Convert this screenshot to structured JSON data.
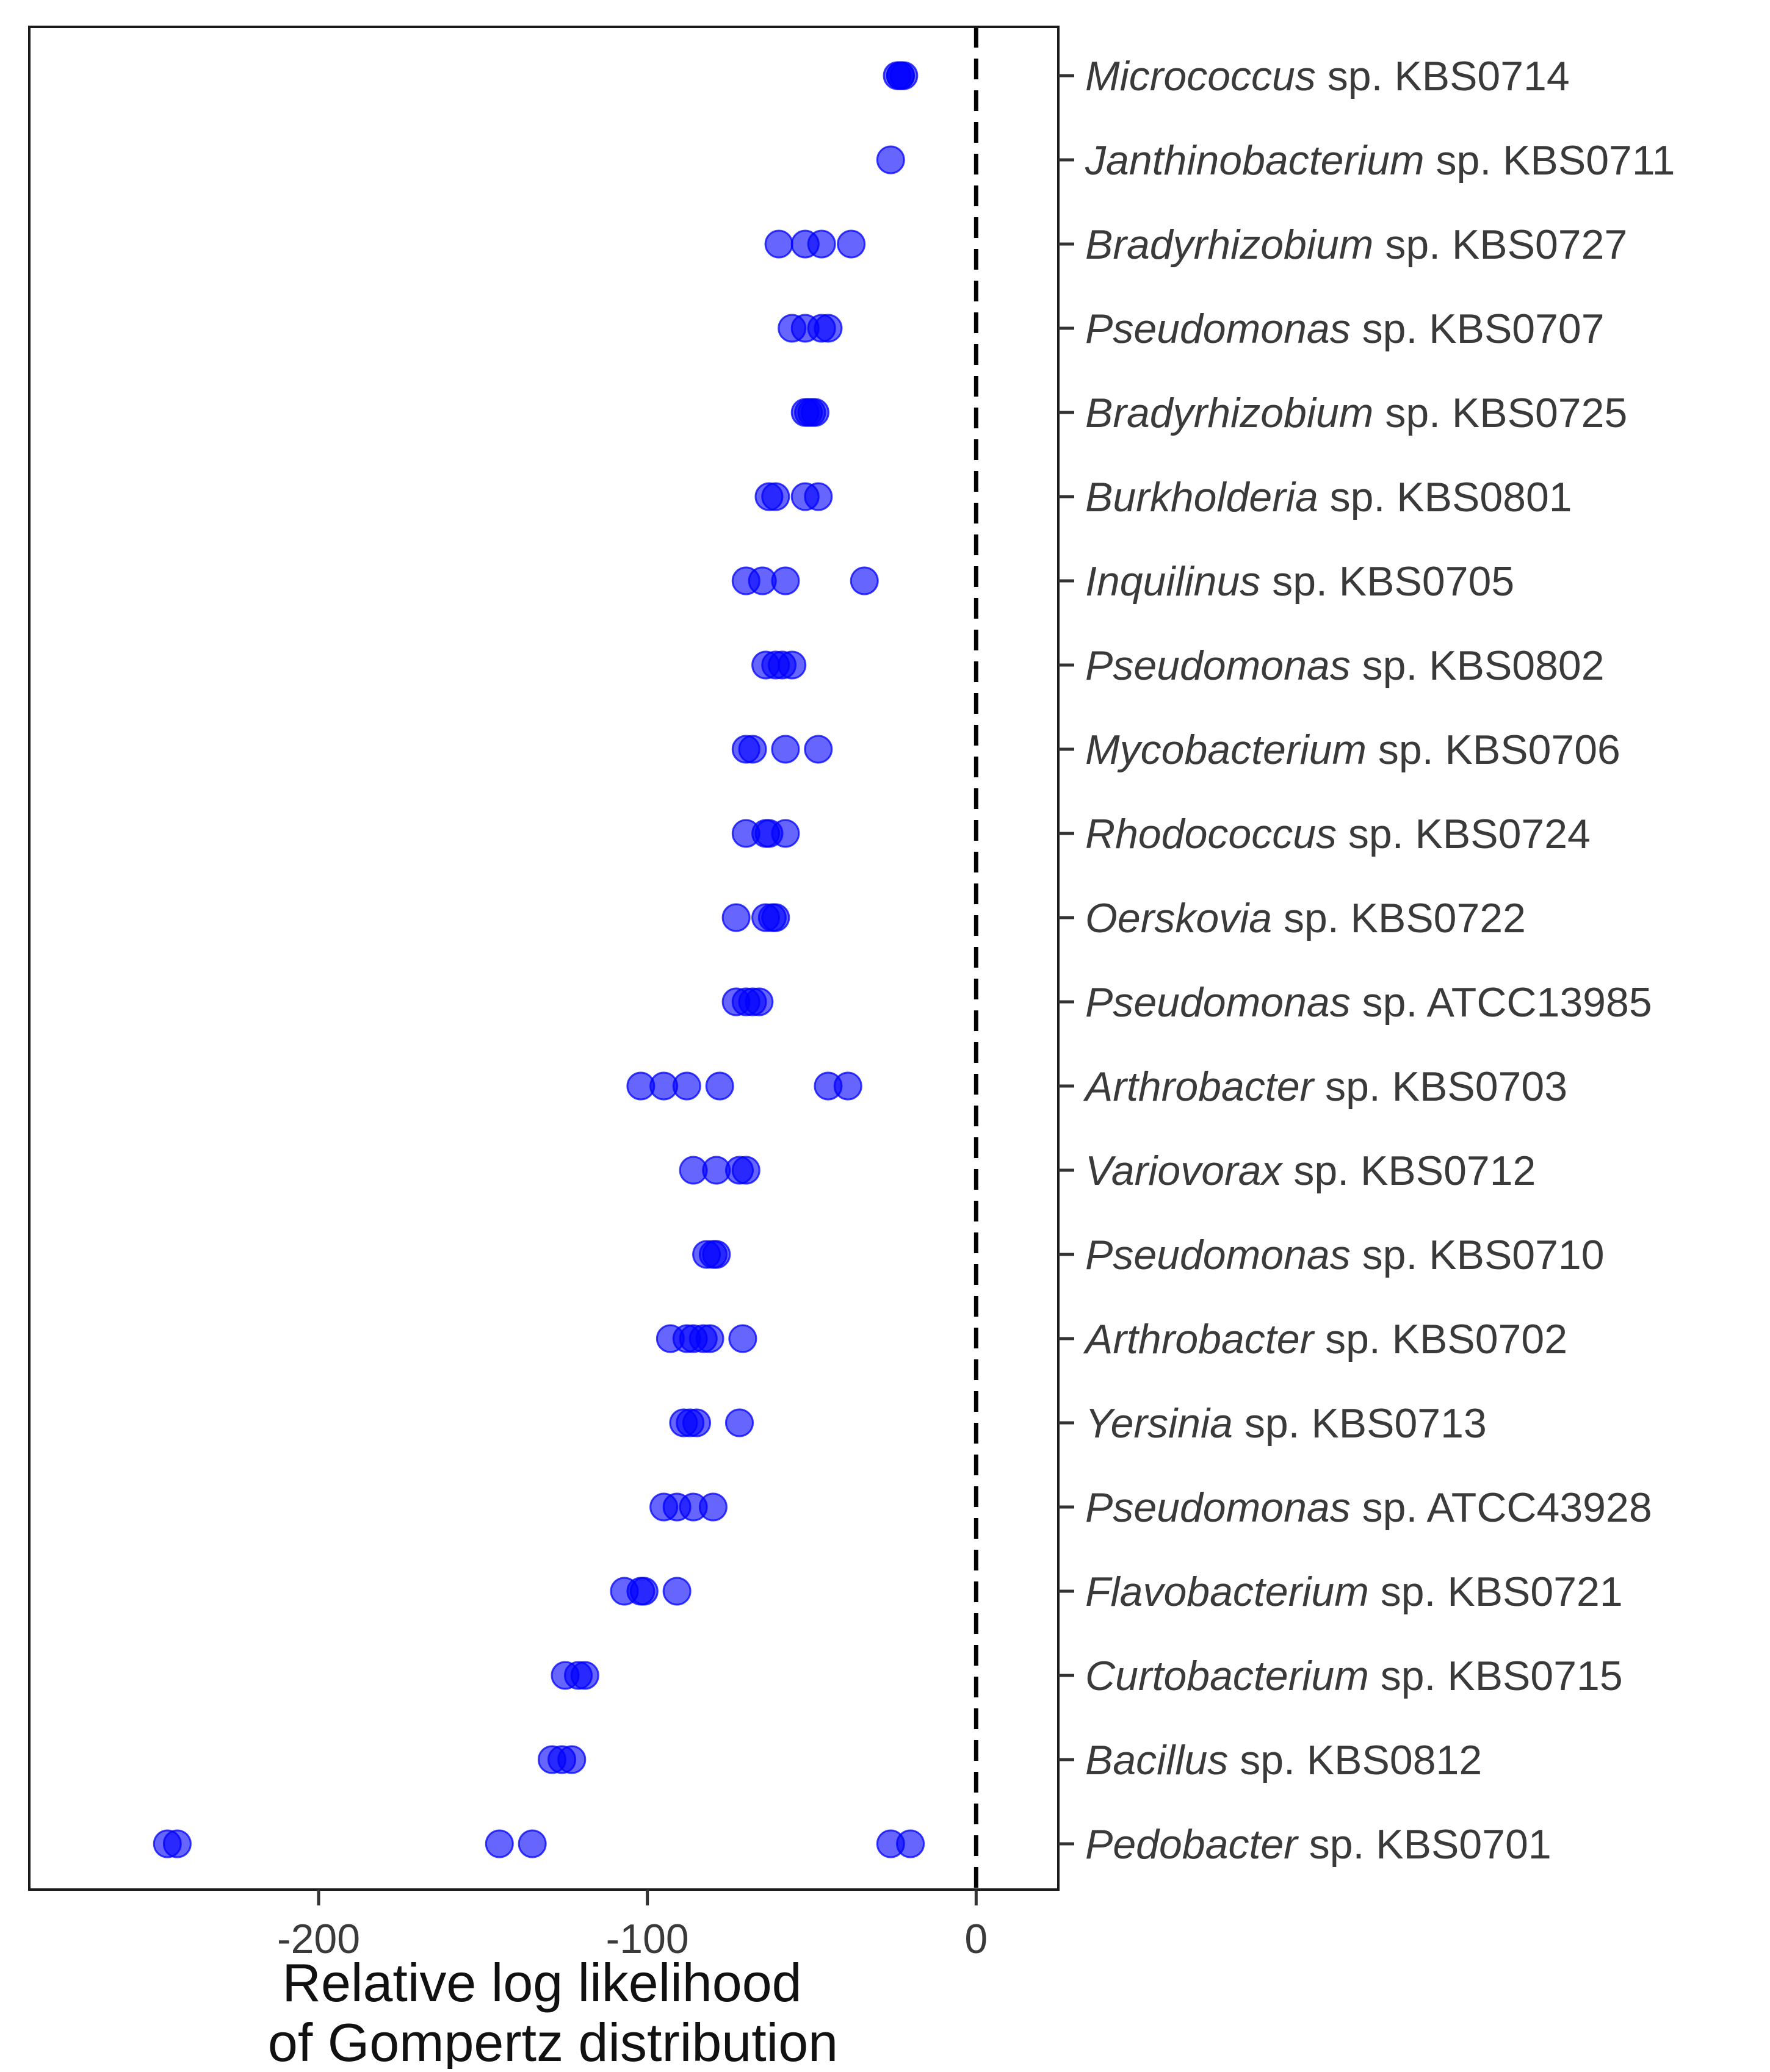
{
  "chart_data": {
    "type": "scatter",
    "title": "",
    "xlabel_lines": [
      "Relative log likelihood",
      "of Gompertz distribution"
    ],
    "ylabel": "",
    "xlim": [
      -288,
      25
    ],
    "xticks": [
      {
        "value": -200,
        "label": "-200"
      },
      {
        "value": -100,
        "label": "-100"
      },
      {
        "value": 0,
        "label": "0"
      }
    ],
    "reference_line": {
      "x": 0,
      "style": "dashed",
      "color": "#000000"
    },
    "grid": false,
    "point_color": "#0000ff",
    "point_opacity": 0.6,
    "categories": [
      {
        "genus": "Micrococcus",
        "suffix": " sp. KBS0714",
        "values": [
          -24,
          -23,
          -23,
          -22
        ]
      },
      {
        "genus": "Janthinobacterium",
        "suffix": " sp. KBS0711",
        "values": [
          -26
        ]
      },
      {
        "genus": "Bradyrhizobium",
        "suffix": " sp. KBS0727",
        "values": [
          -60,
          -52,
          -47,
          -38
        ]
      },
      {
        "genus": "Pseudomonas",
        "suffix": " sp. KBS0707",
        "values": [
          -56,
          -52,
          -47,
          -45
        ]
      },
      {
        "genus": "Bradyrhizobium",
        "suffix": " sp. KBS0725",
        "values": [
          -52,
          -51,
          -50,
          -49
        ]
      },
      {
        "genus": "Burkholderia",
        "suffix": " sp. KBS0801",
        "values": [
          -63,
          -61,
          -52,
          -48
        ]
      },
      {
        "genus": "Inquilinus",
        "suffix": " sp. KBS0705",
        "values": [
          -70,
          -65,
          -58,
          -34
        ]
      },
      {
        "genus": "Pseudomonas",
        "suffix": " sp. KBS0802",
        "values": [
          -64,
          -61,
          -59,
          -56
        ]
      },
      {
        "genus": "Mycobacterium",
        "suffix": " sp. KBS0706",
        "values": [
          -70,
          -68,
          -58,
          -48
        ]
      },
      {
        "genus": "Rhodococcus",
        "suffix": " sp. KBS0724",
        "values": [
          -70,
          -64,
          -63,
          -58
        ]
      },
      {
        "genus": "Oerskovia",
        "suffix": " sp. KBS0722",
        "values": [
          -73,
          -64,
          -62,
          -61
        ]
      },
      {
        "genus": "Pseudomonas",
        "suffix": " sp. ATCC13985",
        "values": [
          -73,
          -70,
          -68,
          -66
        ]
      },
      {
        "genus": "Arthrobacter",
        "suffix": " sp. KBS0703",
        "values": [
          -102,
          -95,
          -88,
          -78,
          -45,
          -39
        ]
      },
      {
        "genus": "Variovorax",
        "suffix": " sp. KBS0712",
        "values": [
          -86,
          -79,
          -72,
          -70
        ]
      },
      {
        "genus": "Pseudomonas",
        "suffix": " sp. KBS0710",
        "values": [
          -82,
          -80,
          -79
        ]
      },
      {
        "genus": "Arthrobacter",
        "suffix": " sp. KBS0702",
        "values": [
          -93,
          -88,
          -86,
          -83,
          -81,
          -71
        ]
      },
      {
        "genus": "Yersinia",
        "suffix": " sp. KBS0713",
        "values": [
          -89,
          -87,
          -85,
          -72
        ]
      },
      {
        "genus": "Pseudomonas",
        "suffix": " sp. ATCC43928",
        "values": [
          -95,
          -91,
          -86,
          -80
        ]
      },
      {
        "genus": "Flavobacterium",
        "suffix": " sp. KBS0721",
        "values": [
          -107,
          -102,
          -101,
          -91
        ]
      },
      {
        "genus": "Curtobacterium",
        "suffix": " sp. KBS0715",
        "values": [
          -125,
          -121,
          -119
        ]
      },
      {
        "genus": "Bacillus",
        "suffix": " sp. KBS0812",
        "values": [
          -129,
          -126,
          -123
        ]
      },
      {
        "genus": "Pedobacter",
        "suffix": " sp. KBS0701",
        "values": [
          -246,
          -243,
          -145,
          -135,
          -26,
          -20
        ]
      }
    ]
  }
}
